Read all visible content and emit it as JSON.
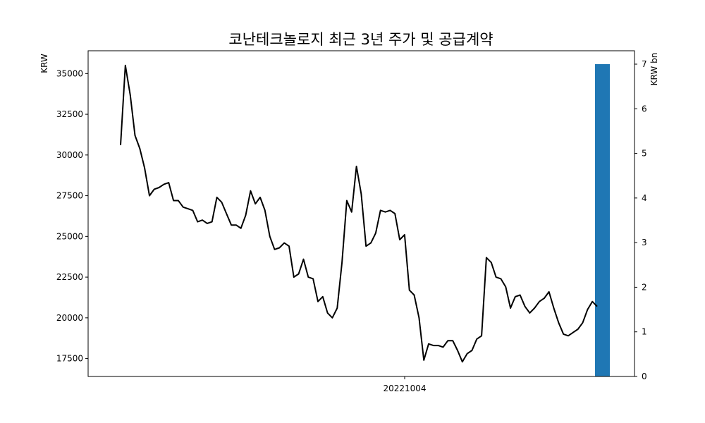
{
  "chart_data": {
    "type": "line",
    "title": "코난테크놀로지 최근 3년 주가 및 공급계약",
    "ylabel": "KRW",
    "y2label": "KRW bn",
    "ylim": [
      16400,
      36400
    ],
    "y2lim": [
      0,
      7.3
    ],
    "yticks": [
      "17500",
      "20000",
      "22500",
      "25000",
      "27500",
      "30000",
      "32500",
      "35000"
    ],
    "y2ticks": [
      "0",
      "1",
      "2",
      "3",
      "4",
      "5",
      "6",
      "7"
    ],
    "xtick_label": "20221004",
    "line_color": "#000000",
    "bar_color": "#1f77b4",
    "series": [
      {
        "values": [
          30600,
          35500,
          33700,
          31200,
          30400,
          29200,
          27500,
          27900,
          28000,
          28200,
          28300,
          27200,
          27200,
          26800,
          26700,
          26600,
          25900,
          26000,
          25800,
          25900,
          27400,
          27100,
          26400,
          25700,
          25700,
          25500,
          26300,
          27800,
          27000,
          27400,
          26600,
          25000,
          24200,
          24300,
          24600,
          24400,
          22500,
          22700,
          23600,
          22500,
          22400,
          21000,
          21300,
          20300,
          20000,
          20600,
          23400,
          27200,
          26500,
          29300,
          27600,
          24400,
          24600,
          25200,
          26600,
          26500,
          26600,
          26400,
          24800,
          25100,
          21700,
          21400,
          20000,
          17400,
          18400,
          18300,
          18300,
          18200,
          18600,
          18600,
          18000,
          17300,
          17800,
          18000,
          18700,
          18900,
          23700,
          23400,
          22500,
          22400,
          21900,
          20600,
          21300,
          21400,
          20700,
          20300,
          20600,
          21000,
          21200,
          21600,
          20600,
          19700,
          19000,
          18900,
          19100,
          19300,
          19700,
          20500,
          21000,
          20700
        ]
      }
    ],
    "bars": [
      {
        "value": 7.0
      }
    ]
  }
}
